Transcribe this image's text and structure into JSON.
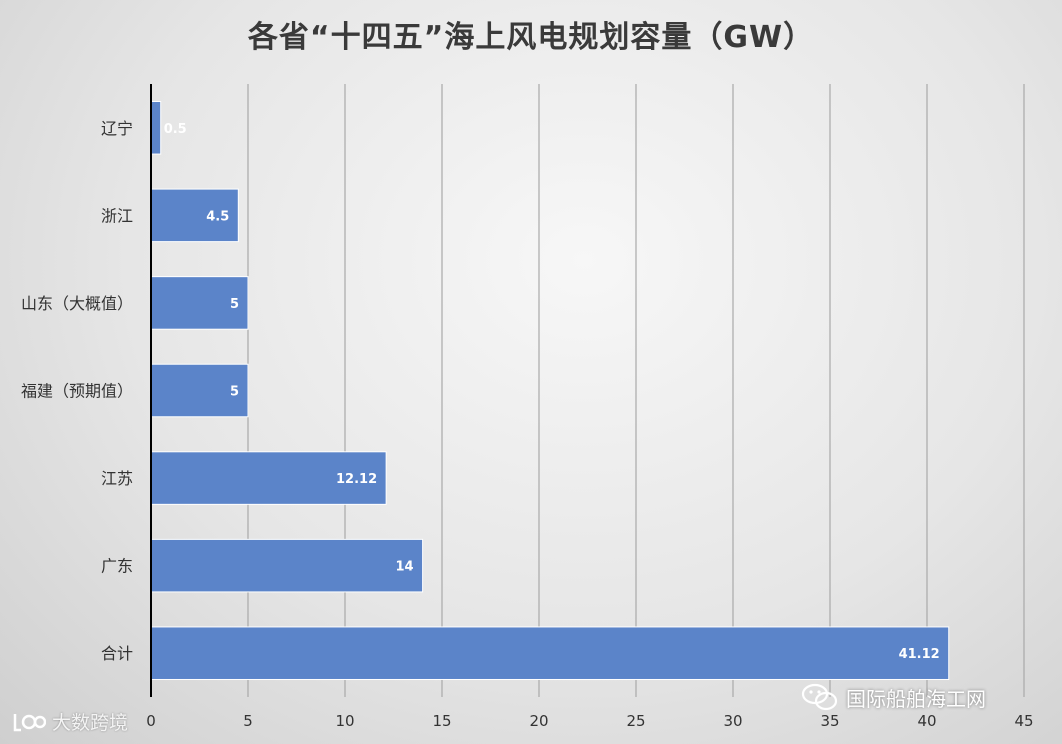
{
  "chart_data": {
    "type": "bar",
    "orientation": "horizontal",
    "title": "各省“十四五”海上风电规划容量（GW）",
    "categories": [
      "辽宁",
      "浙江",
      "山东（大概值）",
      "福建（预期值）",
      "江苏",
      "广东",
      "合计"
    ],
    "values": [
      0.5,
      4.5,
      5,
      5,
      12.12,
      14,
      41.12
    ],
    "data_labels": [
      "0.5",
      "4.5",
      "5",
      "5",
      "12.12",
      "14",
      "41.12"
    ],
    "xlim": [
      0,
      45
    ],
    "x_ticks": [
      0,
      5,
      10,
      15,
      20,
      25,
      30,
      35,
      40,
      45
    ],
    "grid": true,
    "bar_color": "#5b84c9"
  },
  "watermarks": {
    "left": "大数跨境",
    "right": "国际船舶海工网"
  }
}
